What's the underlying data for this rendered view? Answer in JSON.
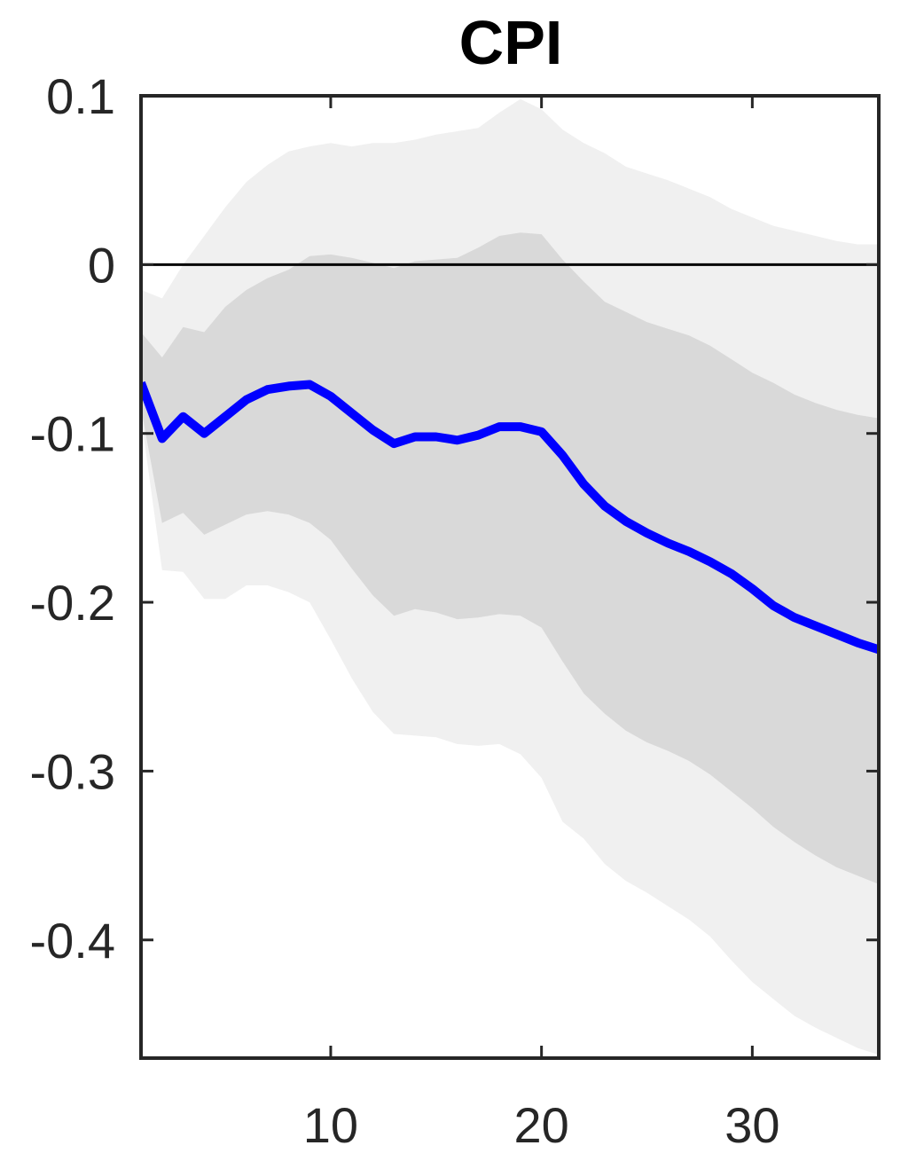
{
  "chart_data": {
    "type": "line",
    "title": "CPI",
    "xlabel": "",
    "ylabel": "",
    "xlim": [
      1,
      36
    ],
    "ylim": [
      -0.47,
      0.1
    ],
    "xticks": [
      10,
      20,
      30
    ],
    "xtick_labels": [
      "10",
      "20",
      "30"
    ],
    "yticks": [
      0.1,
      0,
      -0.1,
      -0.2,
      -0.3,
      -0.4
    ],
    "ytick_labels": [
      "0.1",
      "0",
      "-0.1",
      "-0.2",
      "-0.3",
      "-0.4"
    ],
    "grid": false,
    "legend": "none",
    "zero_line": 0,
    "x": [
      1,
      2,
      3,
      4,
      5,
      6,
      7,
      8,
      9,
      10,
      11,
      12,
      13,
      14,
      15,
      16,
      17,
      18,
      19,
      20,
      21,
      22,
      23,
      24,
      25,
      26,
      27,
      28,
      29,
      30,
      31,
      32,
      33,
      34,
      35,
      36
    ],
    "series": [
      {
        "role": "median",
        "color": "#0000ff",
        "values": [
          -0.07,
          -0.103,
          -0.09,
          -0.1,
          -0.09,
          -0.08,
          -0.074,
          -0.072,
          -0.071,
          -0.078,
          -0.088,
          -0.098,
          -0.106,
          -0.102,
          -0.102,
          -0.104,
          -0.101,
          -0.096,
          -0.096,
          -0.099,
          -0.113,
          -0.13,
          -0.143,
          -0.152,
          -0.159,
          -0.165,
          -0.17,
          -0.176,
          -0.183,
          -0.192,
          -0.202,
          -0.209,
          -0.214,
          -0.219,
          -0.224,
          -0.228
        ]
      }
    ],
    "bands": [
      {
        "role": "outer",
        "color": "#f0f0f0",
        "upper": [
          -0.015,
          -0.02,
          0.0,
          0.017,
          0.034,
          0.049,
          0.059,
          0.067,
          0.07,
          0.072,
          0.07,
          0.072,
          0.072,
          0.074,
          0.077,
          0.079,
          0.081,
          0.09,
          0.098,
          0.092,
          0.08,
          0.072,
          0.066,
          0.058,
          0.054,
          0.05,
          0.045,
          0.04,
          0.033,
          0.028,
          0.023,
          0.02,
          0.017,
          0.014,
          0.012,
          0.012
        ],
        "lower": [
          -0.09,
          -0.181,
          -0.182,
          -0.198,
          -0.198,
          -0.19,
          -0.19,
          -0.194,
          -0.2,
          -0.222,
          -0.245,
          -0.265,
          -0.278,
          -0.279,
          -0.28,
          -0.284,
          -0.285,
          -0.284,
          -0.29,
          -0.304,
          -0.33,
          -0.34,
          -0.355,
          -0.365,
          -0.372,
          -0.38,
          -0.388,
          -0.398,
          -0.412,
          -0.425,
          -0.435,
          -0.445,
          -0.452,
          -0.458,
          -0.464,
          -0.468
        ]
      },
      {
        "role": "inner",
        "color": "#d9d9d9",
        "upper": [
          -0.04,
          -0.055,
          -0.037,
          -0.04,
          -0.025,
          -0.015,
          -0.008,
          -0.003,
          0.005,
          0.006,
          0.004,
          0.001,
          -0.002,
          0.002,
          0.003,
          0.004,
          0.01,
          0.017,
          0.019,
          0.018,
          0.003,
          -0.01,
          -0.022,
          -0.028,
          -0.034,
          -0.038,
          -0.042,
          -0.048,
          -0.056,
          -0.064,
          -0.07,
          -0.077,
          -0.082,
          -0.086,
          -0.089,
          -0.091
        ],
        "lower": [
          -0.085,
          -0.153,
          -0.147,
          -0.16,
          -0.154,
          -0.148,
          -0.146,
          -0.148,
          -0.153,
          -0.163,
          -0.18,
          -0.196,
          -0.208,
          -0.204,
          -0.206,
          -0.21,
          -0.209,
          -0.207,
          -0.208,
          -0.215,
          -0.235,
          -0.254,
          -0.266,
          -0.276,
          -0.283,
          -0.288,
          -0.294,
          -0.302,
          -0.312,
          -0.322,
          -0.333,
          -0.342,
          -0.35,
          -0.357,
          -0.362,
          -0.367
        ]
      }
    ]
  }
}
